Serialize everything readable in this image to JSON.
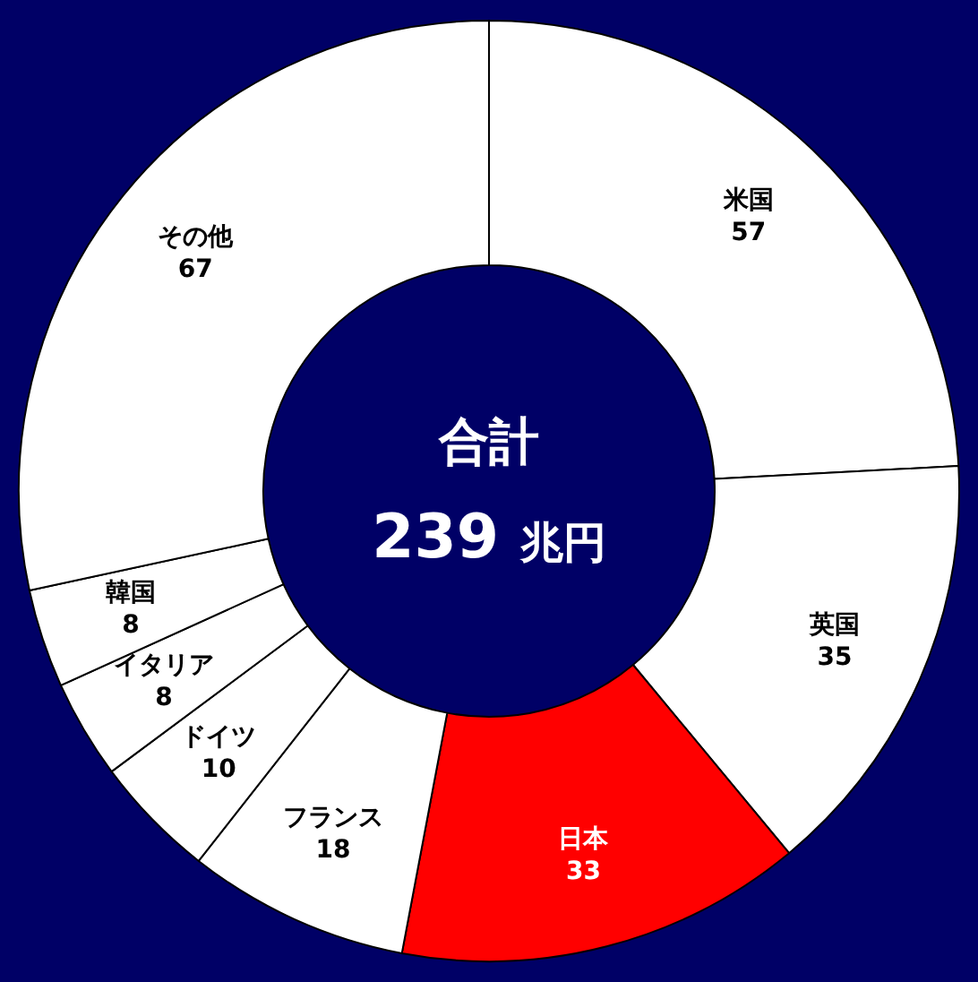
{
  "chart_data": {
    "type": "donut",
    "title": "合計",
    "subtitle": "239 兆円",
    "categories": [
      "米国",
      "英国",
      "日本",
      "フランス",
      "ドイツ",
      "イタリア",
      "韓国",
      "その他"
    ],
    "values": [
      57,
      35,
      33,
      18,
      10,
      8,
      8,
      67
    ],
    "colors": [
      "#ffffff",
      "#ffffff",
      "#ff0000",
      "#ffffff",
      "#ffffff",
      "#ffffff",
      "#ffffff",
      "#ffffff"
    ],
    "data_labels": true,
    "legend": false
  }
}
